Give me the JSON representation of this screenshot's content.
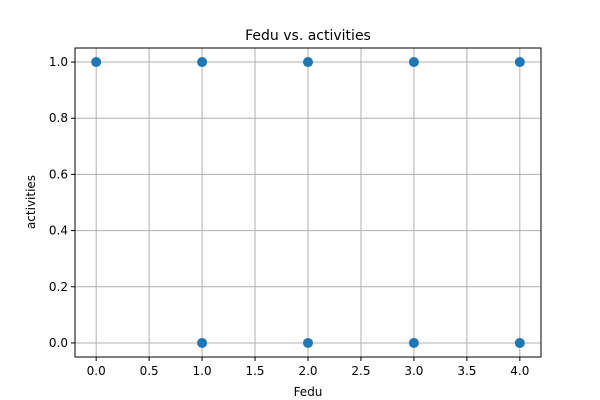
{
  "chart_data": {
    "type": "scatter",
    "title": "Fedu vs. activities",
    "xlabel": "Fedu",
    "ylabel": "activities",
    "xlim": [
      -0.2,
      4.2
    ],
    "ylim": [
      -0.05,
      1.05
    ],
    "xticks": [
      0.0,
      0.5,
      1.0,
      1.5,
      2.0,
      2.5,
      3.0,
      3.5,
      4.0
    ],
    "yticks": [
      0.0,
      0.2,
      0.4,
      0.6,
      0.8,
      1.0
    ],
    "xtick_labels": [
      "0.0",
      "0.5",
      "1.0",
      "1.5",
      "2.0",
      "2.5",
      "3.0",
      "3.5",
      "4.0"
    ],
    "ytick_labels": [
      "0.0",
      "0.2",
      "0.4",
      "0.6",
      "0.8",
      "1.0"
    ],
    "grid": true,
    "marker_color": "#1f77b4",
    "points": [
      {
        "x": 0,
        "y": 1
      },
      {
        "x": 1,
        "y": 1
      },
      {
        "x": 2,
        "y": 1
      },
      {
        "x": 3,
        "y": 1
      },
      {
        "x": 4,
        "y": 1
      },
      {
        "x": 1,
        "y": 0
      },
      {
        "x": 2,
        "y": 0
      },
      {
        "x": 3,
        "y": 0
      },
      {
        "x": 4,
        "y": 0
      }
    ]
  }
}
